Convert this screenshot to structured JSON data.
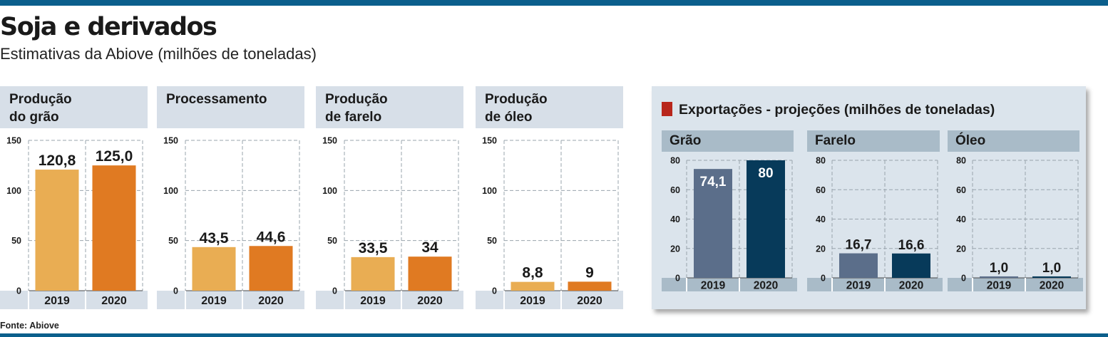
{
  "header": {
    "title": "Soja e derivados",
    "subtitle": "Estimativas da Abiove (milhões de toneladas)"
  },
  "footer": {
    "source": "Fonte: Abiove"
  },
  "colors": {
    "rule": "#0b5f8c",
    "bar_2019": "#e9ad53",
    "bar_2020": "#e07a22",
    "export_bar_2019": "#5b6e8a",
    "export_bar_2020": "#073a5a",
    "export_marker": "#b8261c"
  },
  "export_section": {
    "title": "Exportações - projeções (milhões de toneladas)"
  },
  "chart_data": [
    {
      "id": "producao-grao",
      "type": "bar",
      "title": "Produção\ndo grão",
      "categories": [
        "2019",
        "2020"
      ],
      "values": [
        120.8,
        125.0
      ],
      "labels": [
        "120,8",
        "125,0"
      ],
      "ylim": [
        0,
        150
      ],
      "yticks": [
        "0",
        "50",
        "100",
        "150"
      ],
      "grid": true
    },
    {
      "id": "processamento",
      "type": "bar",
      "title": "Processamento",
      "categories": [
        "2019",
        "2020"
      ],
      "values": [
        43.5,
        44.6
      ],
      "labels": [
        "43,5",
        "44,6"
      ],
      "ylim": [
        0,
        150
      ],
      "yticks": [
        "0",
        "50",
        "100",
        "150"
      ],
      "grid": true
    },
    {
      "id": "producao-farelo",
      "type": "bar",
      "title": "Produção\nde farelo",
      "categories": [
        "2019",
        "2020"
      ],
      "values": [
        33.5,
        34
      ],
      "labels": [
        "33,5",
        "34"
      ],
      "ylim": [
        0,
        150
      ],
      "yticks": [
        "0",
        "50",
        "100",
        "150"
      ],
      "grid": true
    },
    {
      "id": "producao-oleo",
      "type": "bar",
      "title": "Produção\nde óleo",
      "categories": [
        "2019",
        "2020"
      ],
      "values": [
        8.8,
        9
      ],
      "labels": [
        "8,8",
        "9"
      ],
      "ylim": [
        0,
        150
      ],
      "yticks": [
        "0",
        "50",
        "100",
        "150"
      ],
      "grid": true
    },
    {
      "id": "export-grao",
      "type": "bar",
      "title": "Grão",
      "categories": [
        "2019",
        "2020"
      ],
      "values": [
        74.1,
        80
      ],
      "labels": [
        "74,1",
        "80"
      ],
      "ylim": [
        0,
        80
      ],
      "yticks": [
        "0",
        "20",
        "40",
        "60",
        "80"
      ],
      "grid": true
    },
    {
      "id": "export-farelo",
      "type": "bar",
      "title": "Farelo",
      "categories": [
        "2019",
        "2020"
      ],
      "values": [
        16.7,
        16.6
      ],
      "labels": [
        "16,7",
        "16,6"
      ],
      "ylim": [
        0,
        80
      ],
      "yticks": [
        "0",
        "20",
        "40",
        "60",
        "80"
      ],
      "grid": true
    },
    {
      "id": "export-oleo",
      "type": "bar",
      "title": "Óleo",
      "categories": [
        "2019",
        "2020"
      ],
      "values": [
        1.0,
        1.0
      ],
      "labels": [
        "1,0",
        "1,0"
      ],
      "ylim": [
        0,
        80
      ],
      "yticks": [
        "0",
        "20",
        "40",
        "60",
        "80"
      ],
      "grid": true
    }
  ]
}
